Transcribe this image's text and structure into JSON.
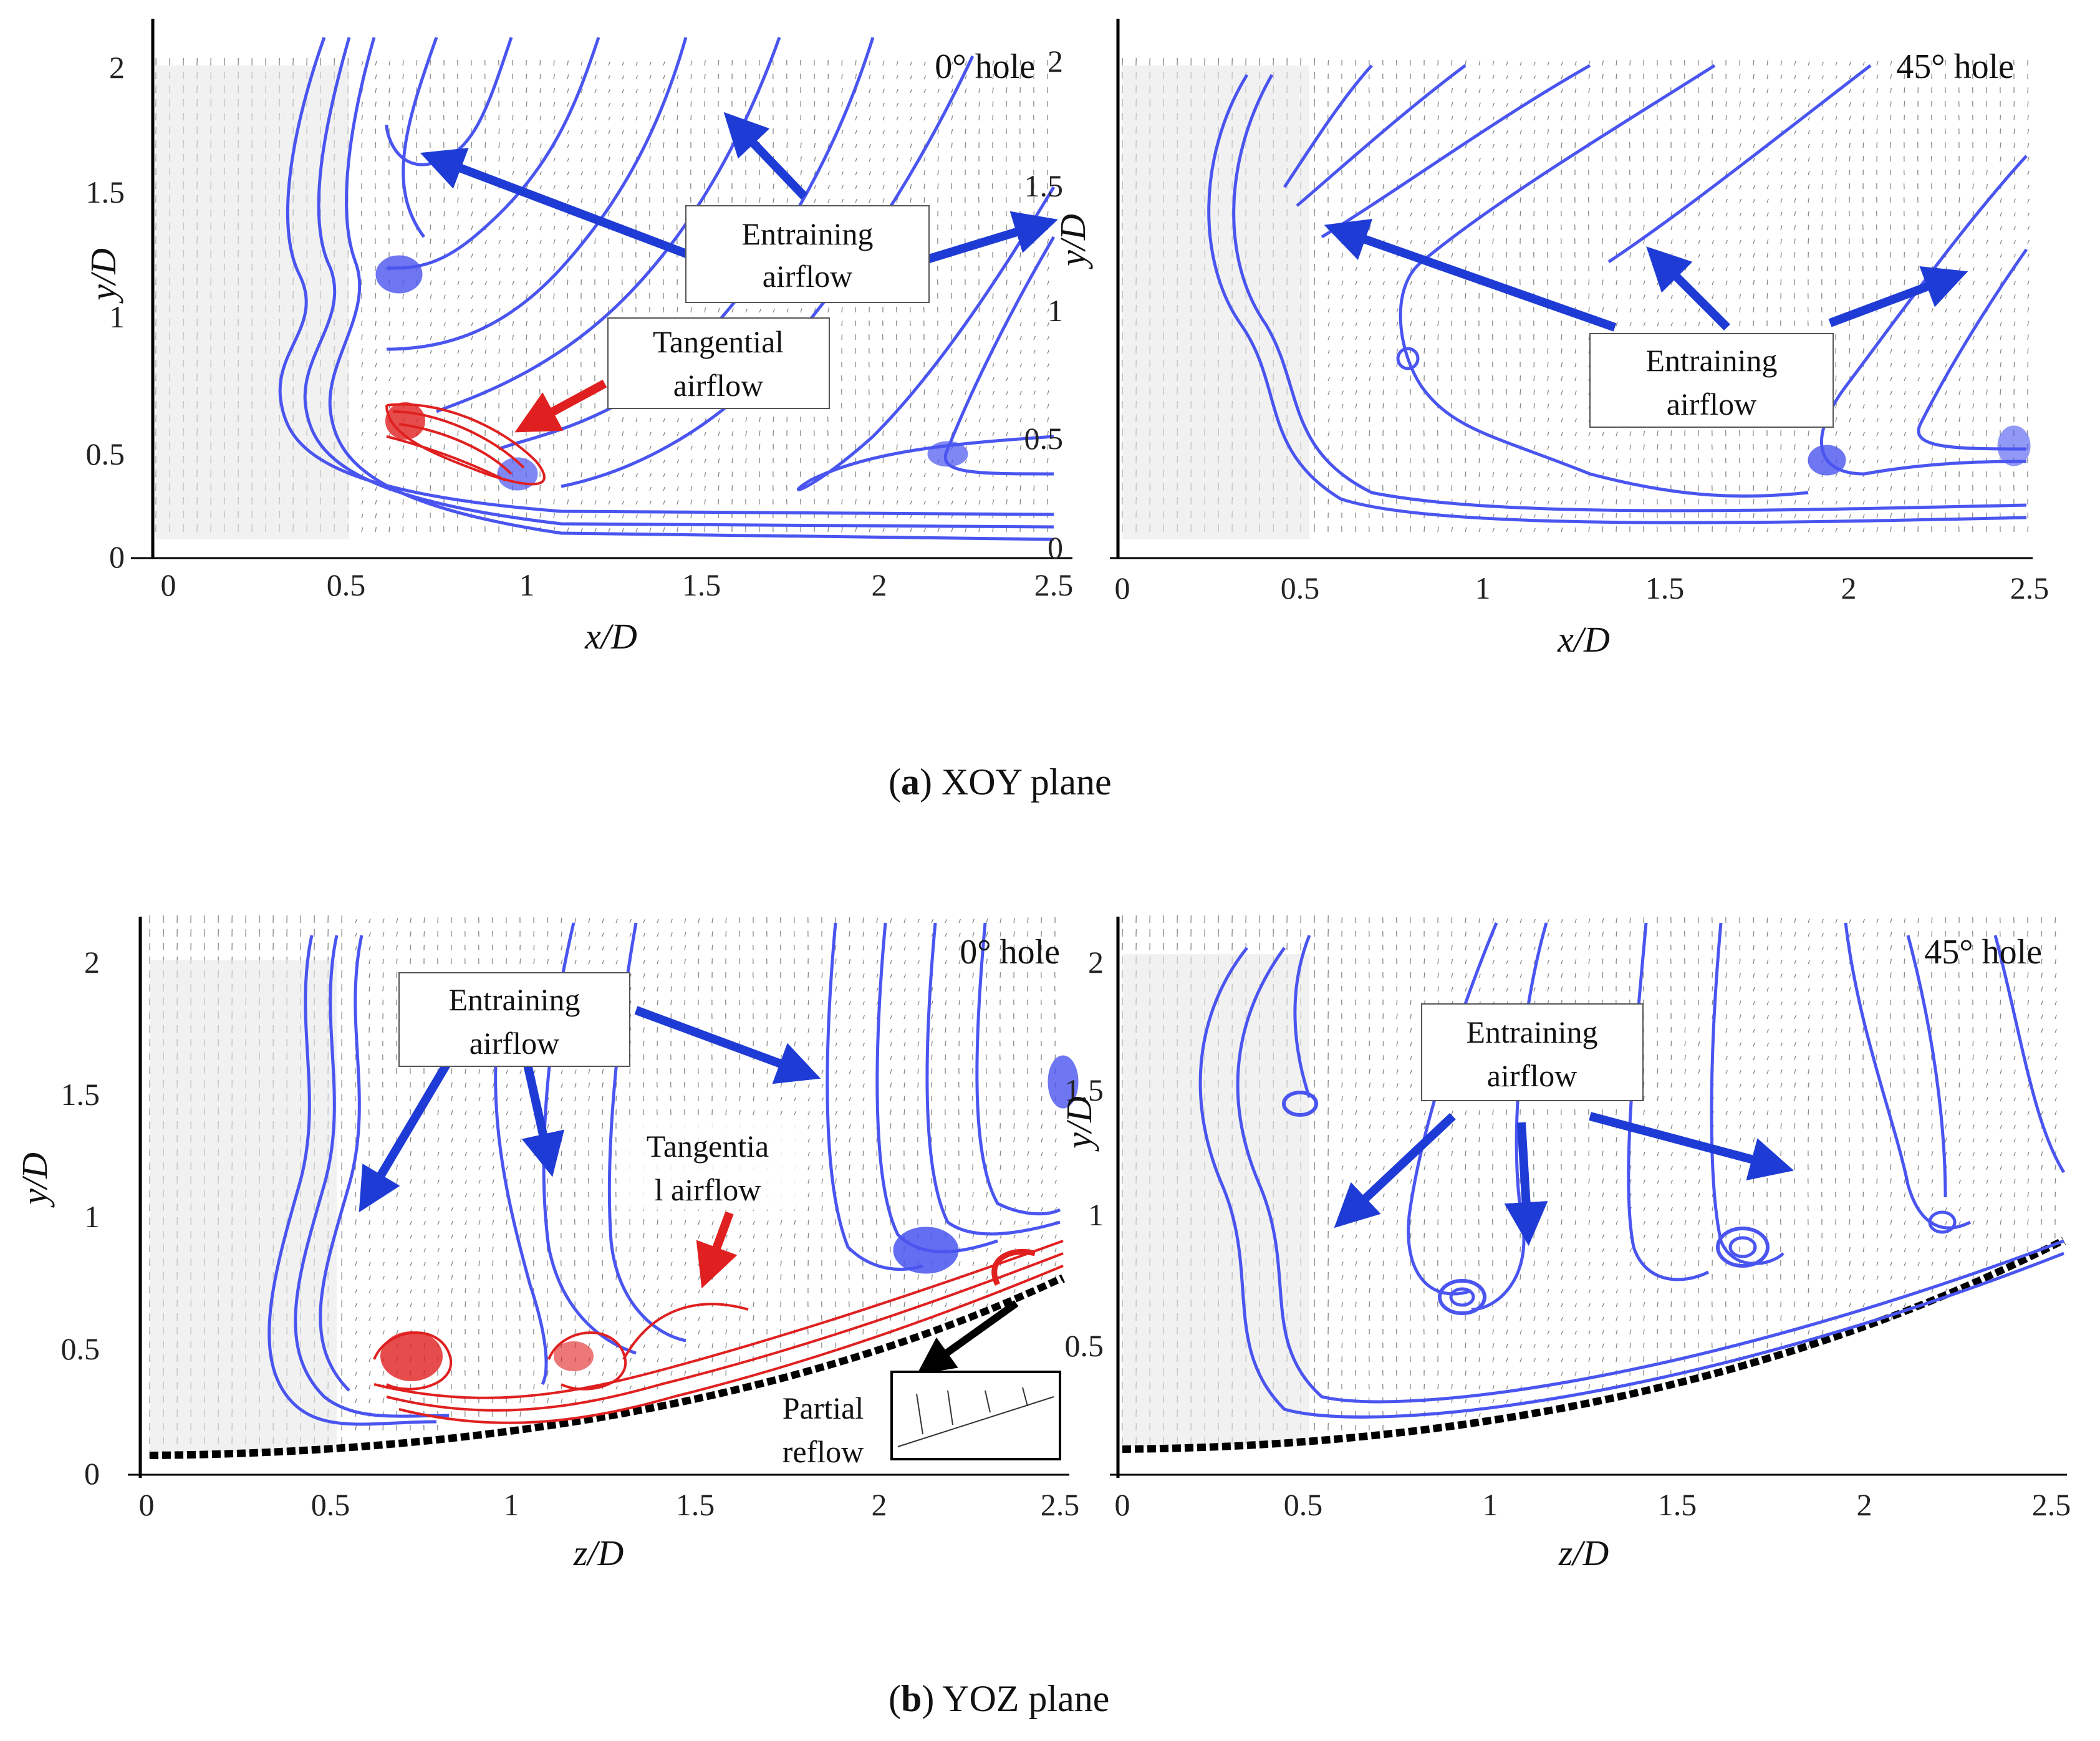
{
  "panels": [
    {
      "id": "xoy-0",
      "hole": "0° hole",
      "xlabel": "x/D",
      "ylabel": "y/D",
      "xticks": [
        "0",
        "0.5",
        "1",
        "1.5",
        "2",
        "2.5"
      ],
      "yticks": [
        "0",
        "0.5",
        "1",
        "1.5",
        "2"
      ],
      "notes": [
        {
          "lines": [
            "Entraining",
            "airflow"
          ],
          "color": "#1f3bd6"
        },
        {
          "lines": [
            "Tangential",
            "airflow"
          ],
          "color": "#e02020"
        }
      ]
    },
    {
      "id": "xoy-45",
      "hole": "45° hole",
      "xlabel": "x/D",
      "ylabel": "y/D",
      "xticks": [
        "0",
        "0.5",
        "1",
        "1.5",
        "2",
        "2.5"
      ],
      "yticks": [
        "0",
        "0.5",
        "1",
        "1.5",
        "2"
      ],
      "notes": [
        {
          "lines": [
            "Entraining",
            "airflow"
          ],
          "color": "#1f3bd6"
        }
      ]
    },
    {
      "id": "yoz-0",
      "hole": "0° hole",
      "xlabel": "z/D",
      "ylabel": "y/D",
      "xticks": [
        "0",
        "0.5",
        "1",
        "1.5",
        "2",
        "2.5"
      ],
      "yticks": [
        "0",
        "0.5",
        "1",
        "1.5",
        "2"
      ],
      "notes": [
        {
          "lines": [
            "Entraining",
            "airflow"
          ],
          "color": "#1f3bd6"
        },
        {
          "lines": [
            "Tangentia",
            "l airflow"
          ],
          "color": "#e02020"
        },
        {
          "lines": [
            "Partial",
            "reflow"
          ],
          "color": "#000000"
        }
      ]
    },
    {
      "id": "yoz-45",
      "hole": "45° hole",
      "xlabel": "z/D",
      "ylabel": "y/D",
      "xticks": [
        "0",
        "0.5",
        "1",
        "1.5",
        "2",
        "2.5"
      ],
      "yticks": [
        "0",
        "0.5",
        "1",
        "1.5",
        "2"
      ],
      "notes": [
        {
          "lines": [
            "Entraining",
            "airflow"
          ],
          "color": "#1f3bd6"
        }
      ]
    }
  ],
  "captions": [
    {
      "letter": "a",
      "text": ") XOY plane"
    },
    {
      "letter": "b",
      "text": ") YOZ plane"
    }
  ],
  "colors": {
    "streamline": "#4a55f0",
    "arrow_blue": "#1f3bd6",
    "arrow_red": "#e02020",
    "vectors": "#222222"
  }
}
